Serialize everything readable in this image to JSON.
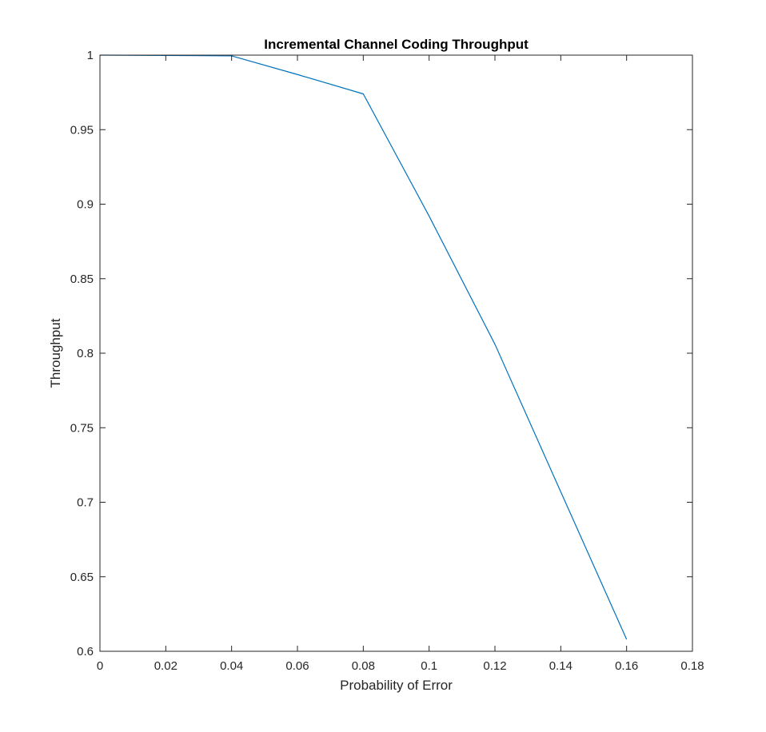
{
  "chart_data": {
    "type": "line",
    "title": "Incremental Channel Coding Throughput",
    "xlabel": "Probability of Error",
    "ylabel": "Throughput",
    "xlim": [
      0,
      0.18
    ],
    "ylim": [
      0.6,
      1
    ],
    "xticks": [
      "0",
      "0.02",
      "0.04",
      "0.06",
      "0.08",
      "0.1",
      "0.12",
      "0.14",
      "0.16",
      "0.18"
    ],
    "xtick_values": [
      0,
      0.02,
      0.04,
      0.06,
      0.08,
      0.1,
      0.12,
      0.14,
      0.16,
      0.18
    ],
    "yticks": [
      "0.6",
      "0.65",
      "0.7",
      "0.75",
      "0.8",
      "0.85",
      "0.9",
      "0.95",
      "1"
    ],
    "ytick_values": [
      0.6,
      0.65,
      0.7,
      0.75,
      0.8,
      0.85,
      0.9,
      0.95,
      1
    ],
    "grid": false,
    "legend": "none",
    "series": [
      {
        "color": "#0072BD",
        "x": [
          0,
          0.02,
          0.04,
          0.06,
          0.08,
          0.1,
          0.12,
          0.14,
          0.16
        ],
        "y": [
          1.0,
          0.9998,
          0.9995,
          0.987,
          0.974,
          0.892,
          0.806,
          0.707,
          0.608
        ]
      }
    ]
  }
}
